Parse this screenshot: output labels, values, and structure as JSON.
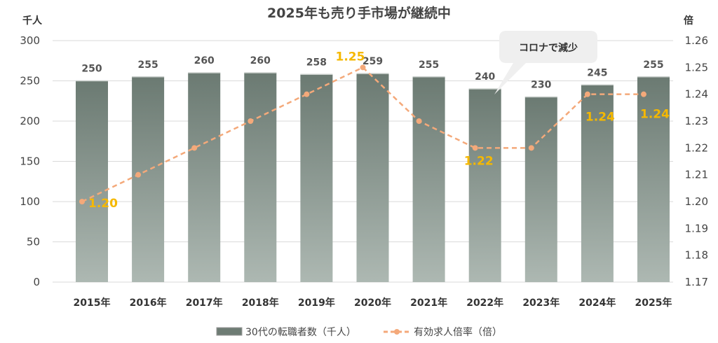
{
  "chart_data": {
    "type": "bar",
    "title": "2025年も売り手市場が継続中",
    "ylabel": "千人",
    "y2label": "倍",
    "ylim": [
      0,
      300
    ],
    "y2lim": [
      1.17,
      1.26
    ],
    "yticks": [
      "0",
      "50",
      "100",
      "150",
      "200",
      "250",
      "300"
    ],
    "y2ticks": [
      "1.17",
      "1.18",
      "1.19",
      "1.20",
      "1.21",
      "1.22",
      "1.23",
      "1.24",
      "1.25",
      "1.26"
    ],
    "categories": [
      "2015年",
      "2016年",
      "2017年",
      "2018年",
      "2019年",
      "2020年",
      "2021年",
      "2022年",
      "2023年",
      "2024年",
      "2025年"
    ],
    "grid": true,
    "legend_position": "bottom",
    "series": [
      {
        "name": "30代の転職者数（千人）",
        "type": "bar",
        "axis": "left",
        "color": "#6e7c74",
        "values": [
          250,
          255,
          260,
          260,
          258,
          259,
          255,
          240,
          230,
          245,
          255
        ],
        "labels": [
          "250",
          "255",
          "260",
          "260",
          "258",
          "259",
          "255",
          "240",
          "230",
          "245",
          "255"
        ]
      },
      {
        "name": "有効求人倍率（倍）",
        "type": "line",
        "axis": "right",
        "color": "#f4a97a",
        "values": [
          1.2,
          1.21,
          1.22,
          1.23,
          1.24,
          1.25,
          1.23,
          1.22,
          1.22,
          1.24,
          1.24
        ],
        "labels": [
          "1.20",
          "",
          "",
          "",
          "",
          "1.25",
          "",
          "1.22",
          "",
          "1.24",
          "1.24"
        ]
      }
    ],
    "annotation": "コロナで減少"
  }
}
